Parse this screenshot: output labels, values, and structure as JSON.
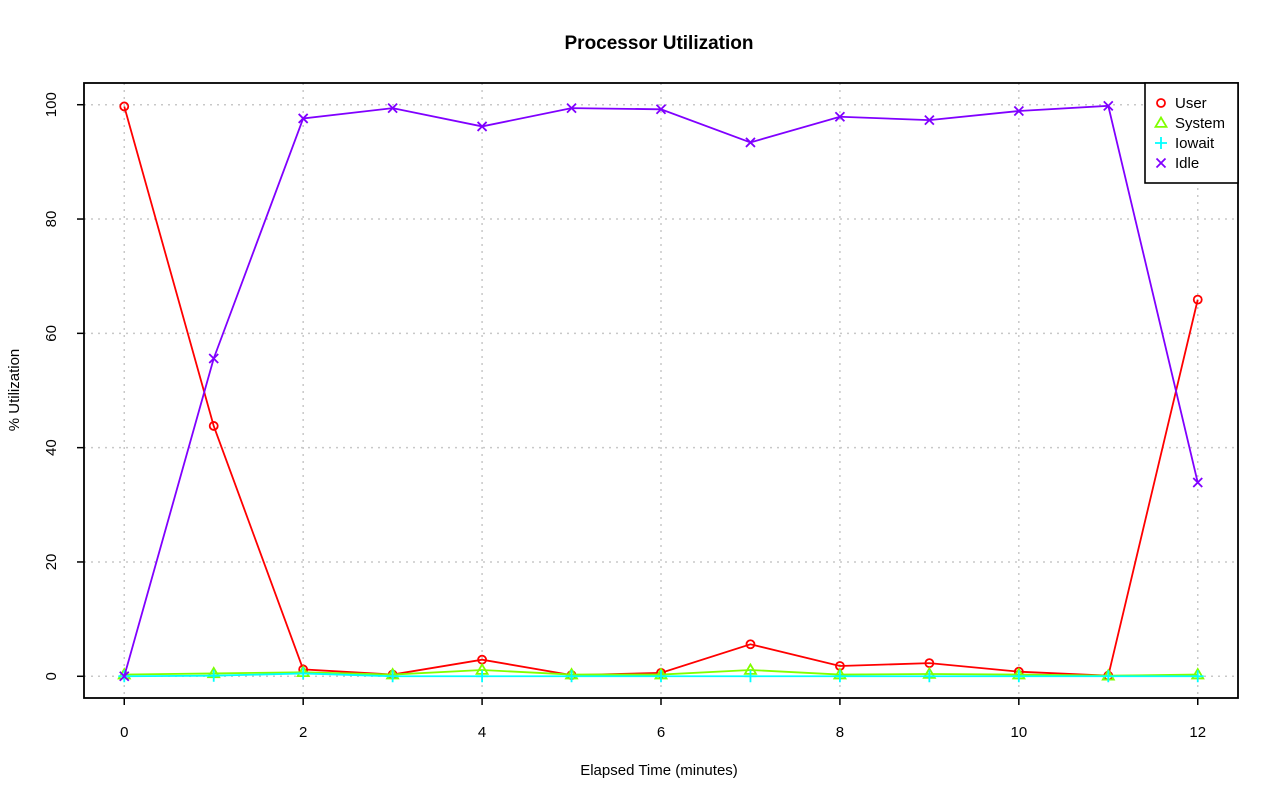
{
  "chart_data": {
    "type": "line",
    "title": "Processor Utilization",
    "xlabel": "Elapsed Time (minutes)",
    "ylabel": "% Utilization",
    "xlim": [
      -0.45,
      12.45
    ],
    "ylim": [
      -3.8,
      103.8
    ],
    "xticks": [
      0,
      2,
      4,
      6,
      8,
      10,
      12
    ],
    "yticks": [
      0,
      20,
      40,
      60,
      80,
      100
    ],
    "grid": true,
    "legend_position": "top-right",
    "x": [
      0,
      1,
      2,
      3,
      4,
      5,
      6,
      7,
      8,
      9,
      10,
      11,
      12
    ],
    "series": [
      {
        "name": "User",
        "color": "#ff0000",
        "marker": "circle",
        "values": [
          99.7,
          43.8,
          1.2,
          0.3,
          2.9,
          0.2,
          0.6,
          5.6,
          1.8,
          2.3,
          0.8,
          0.1,
          65.9
        ]
      },
      {
        "name": "System",
        "color": "#80ff00",
        "marker": "triangle",
        "values": [
          0.3,
          0.5,
          0.7,
          0.3,
          1.1,
          0.3,
          0.3,
          1.1,
          0.3,
          0.4,
          0.3,
          0.1,
          0.3
        ]
      },
      {
        "name": "Iowait",
        "color": "#00ffff",
        "marker": "plus",
        "values": [
          0.0,
          0.1,
          0.5,
          0.0,
          0.0,
          0.0,
          0.0,
          0.0,
          0.0,
          0.0,
          0.0,
          0.0,
          0.0
        ]
      },
      {
        "name": "Idle",
        "color": "#8000ff",
        "marker": "cross",
        "values": [
          0.0,
          55.6,
          97.6,
          99.4,
          96.2,
          99.4,
          99.2,
          93.4,
          97.9,
          97.3,
          98.9,
          99.8,
          33.9
        ]
      }
    ]
  }
}
